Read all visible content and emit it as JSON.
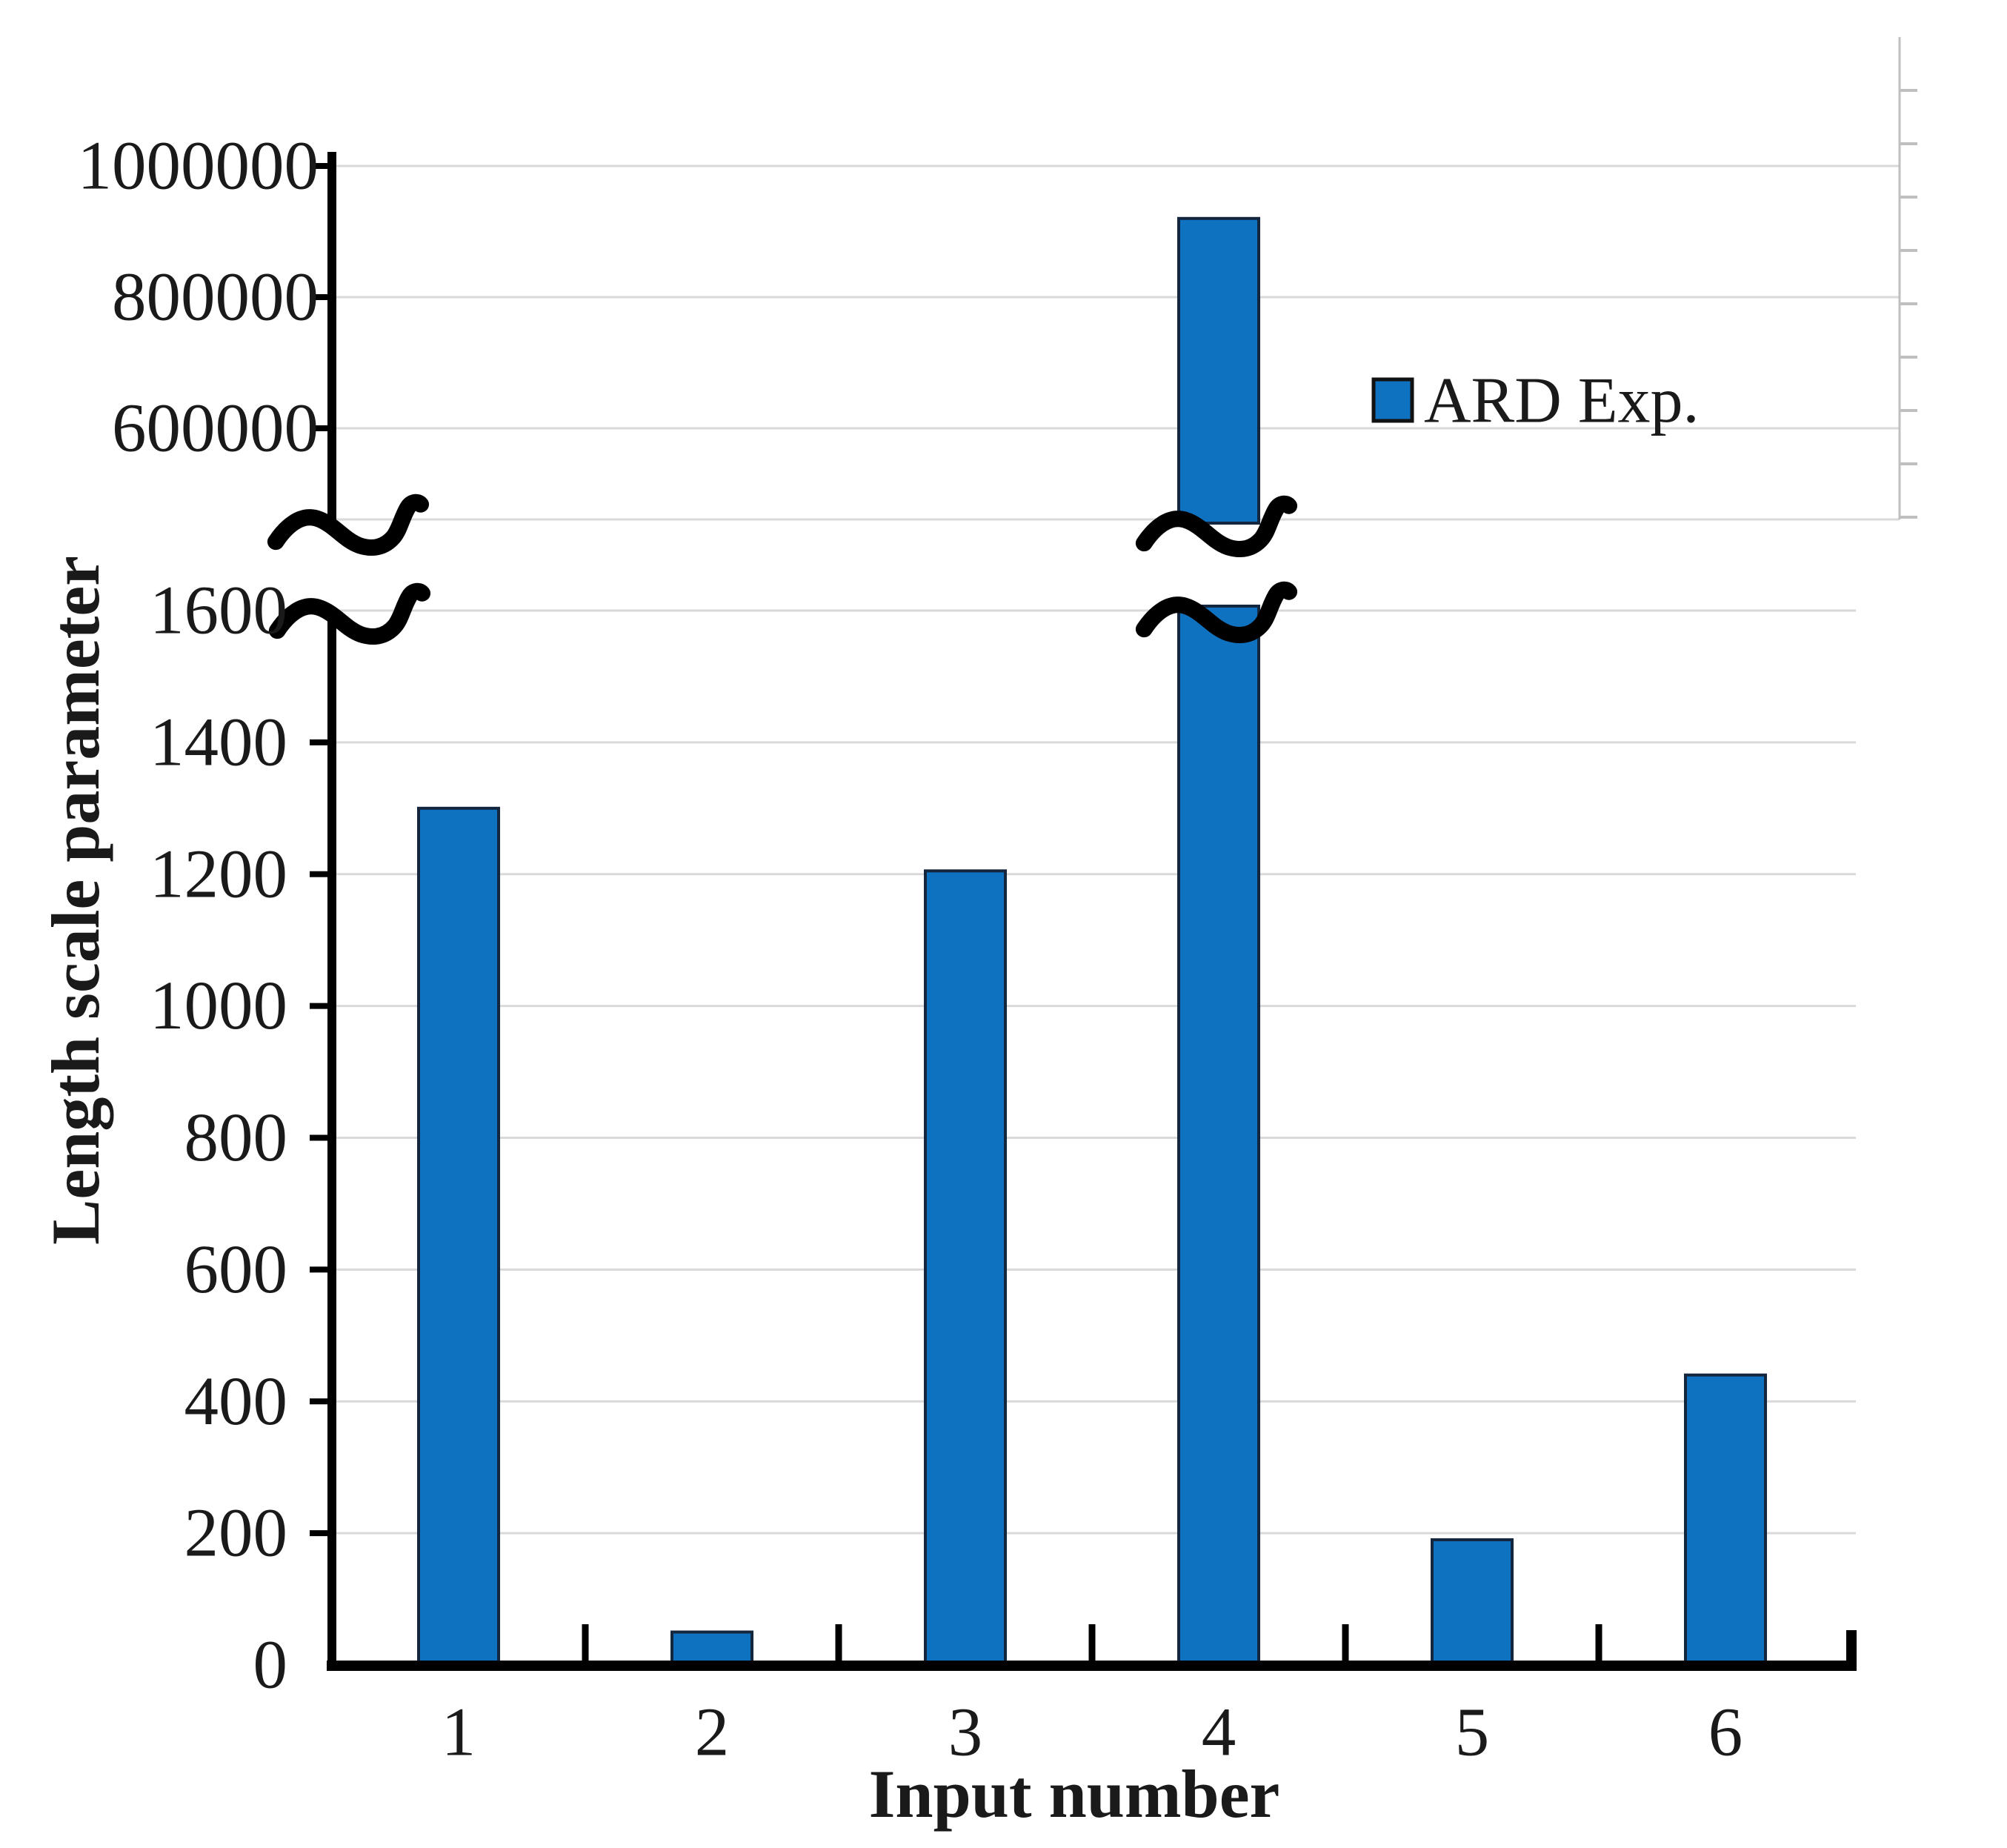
{
  "chart_data": {
    "type": "bar",
    "title": "",
    "xlabel": "Input number",
    "ylabel": "Length scale parameter",
    "categories": [
      "1",
      "2",
      "3",
      "4",
      "5",
      "6"
    ],
    "series": [
      {
        "name": "ARD Exp.",
        "values": [
          1300,
          50,
          1205,
          920000,
          190,
          440
        ],
        "fill_color": "#0E72C0",
        "border_color": "#14263E"
      }
    ],
    "broken_y_axis": {
      "lower_panel": {
        "range": [
          0,
          1600
        ],
        "tick_step": 200,
        "tick_values": [
          0,
          200,
          400,
          600,
          800,
          1000,
          1200,
          1400,
          1600
        ],
        "tick_labels": [
          "0",
          "200",
          "400",
          "600",
          "800",
          "1000",
          "1200",
          "1400",
          "1600"
        ]
      },
      "upper_panel": {
        "visible_range": [
          460000,
          1040000
        ],
        "tick_values": [
          600000,
          800000,
          1000000
        ],
        "tick_labels": [
          "600000",
          "800000",
          "1000000"
        ]
      },
      "break_marker": "wavy-line"
    },
    "legend": {
      "position": "inside-top-right",
      "entries": [
        {
          "label": "ARD Exp.",
          "swatch_color": "#0E72C0",
          "swatch_border": "#111111"
        }
      ]
    },
    "grid": "horizontal",
    "gridline_color": "#D9D9D9",
    "minor_axis_color": "#BFBFBF",
    "axis_color": "#000000",
    "background": "#FFFFFF"
  }
}
